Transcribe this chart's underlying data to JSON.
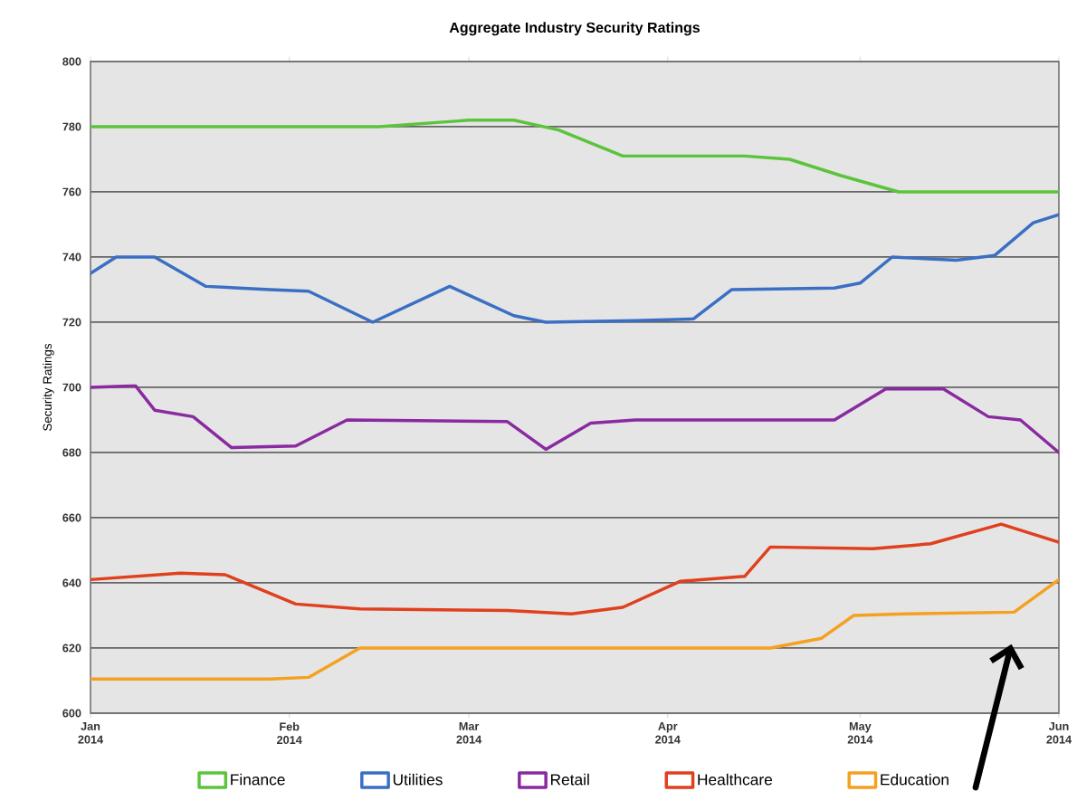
{
  "chart_data": {
    "type": "line",
    "title": "Aggregate Industry Security Ratings",
    "ylabel": "Security Ratings",
    "x": [
      "2014-01-01",
      "2014-01-05",
      "2014-01-11",
      "2014-01-19",
      "2014-01-29",
      "2014-02-04",
      "2014-02-14",
      "2014-02-26",
      "2014-03-08",
      "2014-03-13",
      "2014-03-27",
      "2014-04-05",
      "2014-04-11",
      "2014-04-27",
      "2014-05-01",
      "2014-05-06",
      "2014-05-16",
      "2014-05-22",
      "2014-05-28",
      "2014-06-01"
    ],
    "series": [
      {
        "name": "Finance",
        "color": "#5cc43c",
        "x": [
          "2014-01-01",
          "2014-02-15",
          "2014-03-01",
          "2014-03-08",
          "2014-03-15",
          "2014-03-25",
          "2014-04-13",
          "2014-04-20",
          "2014-04-28",
          "2014-05-07",
          "2014-06-01"
        ],
        "values": [
          780,
          780,
          782,
          782,
          779,
          771,
          771,
          770,
          765,
          760,
          760
        ]
      },
      {
        "name": "Utilities",
        "color": "#3a6fc4",
        "values": [
          735,
          740,
          740,
          731,
          730,
          729.5,
          720,
          731,
          722,
          720,
          720.5,
          721,
          730,
          730.5,
          732,
          740,
          739,
          740.5,
          750.5,
          753
        ]
      },
      {
        "name": "Retail",
        "color": "#8a2aa0",
        "x": [
          "2014-01-01",
          "2014-01-08",
          "2014-01-11",
          "2014-01-17",
          "2014-01-23",
          "2014-02-02",
          "2014-02-10",
          "2014-03-07",
          "2014-03-13",
          "2014-03-20",
          "2014-03-27",
          "2014-04-27",
          "2014-05-05",
          "2014-05-14",
          "2014-05-21",
          "2014-05-26",
          "2014-06-01"
        ],
        "values": [
          700,
          700.5,
          693,
          691,
          681.5,
          682,
          690,
          689.5,
          681,
          689,
          690,
          690,
          699.5,
          699.5,
          691,
          690,
          680
        ]
      },
      {
        "name": "Healthcare",
        "color": "#e0401e",
        "x": [
          "2014-01-01",
          "2014-01-15",
          "2014-01-22",
          "2014-02-02",
          "2014-02-12",
          "2014-03-07",
          "2014-03-17",
          "2014-03-25",
          "2014-04-03",
          "2014-04-13",
          "2014-04-17",
          "2014-05-03",
          "2014-05-12",
          "2014-05-23",
          "2014-06-01"
        ],
        "values": [
          641,
          643,
          642.5,
          633.5,
          632,
          631.5,
          630.5,
          632.5,
          640.5,
          642,
          651,
          650.5,
          652,
          658,
          652.5
        ]
      },
      {
        "name": "Education",
        "color": "#f5a020",
        "x": [
          "2014-01-01",
          "2014-01-29",
          "2014-02-04",
          "2014-02-12",
          "2014-04-17",
          "2014-04-25",
          "2014-04-30",
          "2014-05-08",
          "2014-05-25",
          "2014-06-01"
        ],
        "values": [
          610.5,
          610.5,
          611,
          620,
          620,
          623,
          630,
          630.5,
          631,
          641
        ]
      }
    ],
    "xlim": [
      "2014-01-01",
      "2014-06-01"
    ],
    "xticks": [
      {
        "value": "2014-01-01",
        "label": "Jan 2014"
      },
      {
        "value": "2014-02-01",
        "label": "Feb 2014"
      },
      {
        "value": "2014-03-01",
        "label": "Mar 2014"
      },
      {
        "value": "2014-04-01",
        "label": "Apr 2014"
      },
      {
        "value": "2014-05-01",
        "label": "May 2014"
      },
      {
        "value": "2014-06-01",
        "label": "Jun 2014"
      }
    ],
    "ylim": [
      600,
      800
    ],
    "yticks": [
      600,
      620,
      640,
      660,
      680,
      700,
      720,
      740,
      760,
      780,
      800
    ],
    "grid": "y",
    "legend": "bottom",
    "marker": "none",
    "line_style": "solid"
  }
}
